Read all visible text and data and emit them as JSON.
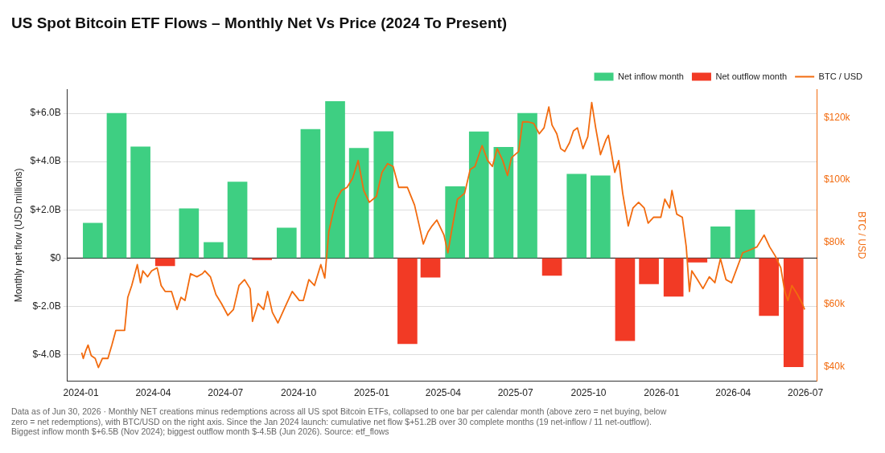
{
  "chart_data": {
    "type": "bar",
    "title": "US Spot Bitcoin ETF Flows – Monthly Net Vs Price (2024 To Present)",
    "ylabel": "Monthly net flow (USD millions)",
    "y2label": "BTC / USD",
    "x": [
      "2024-01-16",
      "2024-02-15",
      "2024-03-16",
      "2024-04-16",
      "2024-05-16",
      "2024-06-16",
      "2024-07-16",
      "2024-08-16",
      "2024-09-16",
      "2024-10-16",
      "2024-11-16",
      "2024-12-16",
      "2025-01-16",
      "2025-02-15",
      "2025-03-16",
      "2025-04-16",
      "2025-05-16",
      "2025-06-16",
      "2025-07-16",
      "2025-08-16",
      "2025-09-16",
      "2025-10-16",
      "2025-11-16",
      "2025-12-16",
      "2026-01-16",
      "2026-02-15",
      "2026-03-16",
      "2026-04-16",
      "2026-05-16",
      "2026-06-16"
    ],
    "series": [
      {
        "name": "Net inflow month",
        "color": "#3ecf82",
        "values": [
          1.45,
          6.0,
          4.61,
          null,
          2.05,
          0.65,
          3.15,
          null,
          1.25,
          5.33,
          6.49,
          4.55,
          5.24,
          null,
          null,
          2.96,
          5.23,
          4.59,
          6.0,
          null,
          3.48,
          3.41,
          null,
          null,
          null,
          null,
          1.3,
          2.0,
          null,
          null
        ]
      },
      {
        "name": "Net outflow month",
        "color": "#f23a25",
        "values": [
          null,
          null,
          null,
          -0.32,
          null,
          null,
          null,
          -0.07,
          null,
          null,
          null,
          null,
          null,
          -3.55,
          -0.79,
          null,
          null,
          null,
          null,
          -0.72,
          null,
          null,
          -3.42,
          -1.07,
          -1.58,
          -0.17,
          null,
          null,
          -2.38,
          -4.5
        ]
      },
      {
        "name": "BTC / USD",
        "type": "line",
        "axis": "y2",
        "color": "#f26b0f",
        "x": [
          "2024-01-02",
          "2024-01-04",
          "2024-01-07",
          "2024-01-10",
          "2024-01-14",
          "2024-01-19",
          "2024-01-23",
          "2024-01-28",
          "2024-02-04",
          "2024-02-09",
          "2024-02-14",
          "2024-02-20",
          "2024-02-25",
          "2024-02-29",
          "2024-03-05",
          "2024-03-12",
          "2024-03-16",
          "2024-03-19",
          "2024-03-25",
          "2024-03-30",
          "2024-04-06",
          "2024-04-11",
          "2024-04-16",
          "2024-04-24",
          "2024-05-01",
          "2024-05-06",
          "2024-05-11",
          "2024-05-18",
          "2024-05-26",
          "2024-06-02",
          "2024-06-05",
          "2024-06-12",
          "2024-06-19",
          "2024-06-26",
          "2024-07-04",
          "2024-07-11",
          "2024-07-18",
          "2024-07-25",
          "2024-08-01",
          "2024-08-04",
          "2024-08-11",
          "2024-08-18",
          "2024-08-23",
          "2024-08-29",
          "2024-09-05",
          "2024-09-11",
          "2024-09-16",
          "2024-09-23",
          "2024-10-02",
          "2024-10-07",
          "2024-10-14",
          "2024-10-21",
          "2024-10-29",
          "2024-11-03",
          "2024-11-08",
          "2024-11-13",
          "2024-11-18",
          "2024-11-24",
          "2024-12-01",
          "2024-12-08",
          "2024-12-15",
          "2024-12-22",
          "2024-12-29",
          "2025-01-07",
          "2025-01-14",
          "2025-01-21",
          "2025-01-28",
          "2025-02-04",
          "2025-02-15",
          "2025-02-24",
          "2025-03-02",
          "2025-03-07",
          "2025-03-13",
          "2025-03-18",
          "2025-03-24",
          "2025-04-02",
          "2025-04-07",
          "2025-04-12",
          "2025-04-19",
          "2025-04-28",
          "2025-05-05",
          "2025-05-11",
          "2025-05-20",
          "2025-05-27",
          "2025-06-02",
          "2025-06-08",
          "2025-06-15",
          "2025-06-21",
          "2025-06-26",
          "2025-07-05",
          "2025-07-10",
          "2025-07-17",
          "2025-07-24",
          "2025-07-31",
          "2025-08-06",
          "2025-08-12",
          "2025-08-16",
          "2025-08-22",
          "2025-08-27",
          "2025-09-01",
          "2025-09-07",
          "2025-09-12",
          "2025-09-17",
          "2025-09-24",
          "2025-09-30",
          "2025-10-05",
          "2025-10-10",
          "2025-10-16",
          "2025-10-23",
          "2025-10-26",
          "2025-11-03",
          "2025-11-08",
          "2025-11-13",
          "2025-11-20",
          "2025-11-26",
          "2025-12-03",
          "2025-12-10",
          "2025-12-15",
          "2025-12-22",
          "2025-12-31",
          "2026-01-05",
          "2026-01-11",
          "2026-01-14",
          "2026-01-20",
          "2026-01-27",
          "2026-02-01",
          "2026-02-05",
          "2026-02-08",
          "2026-02-15",
          "2026-02-22",
          "2026-03-02",
          "2026-03-09",
          "2026-03-16",
          "2026-03-23",
          "2026-03-30",
          "2026-04-06",
          "2026-04-13",
          "2026-04-22",
          "2026-05-01",
          "2026-05-10",
          "2026-05-17",
          "2026-05-24",
          "2026-05-31",
          "2026-06-05",
          "2026-06-09",
          "2026-06-14",
          "2026-06-21",
          "2026-06-27",
          "2026-06-30"
        ],
        "values": [
          44600,
          42700,
          45100,
          47000,
          43600,
          42700,
          39800,
          42700,
          42700,
          47000,
          51700,
          51700,
          51700,
          62300,
          66100,
          72800,
          67000,
          70800,
          68900,
          70800,
          71800,
          66100,
          64200,
          64200,
          58400,
          62300,
          61300,
          69900,
          68900,
          69900,
          70800,
          68900,
          63200,
          60300,
          56500,
          58400,
          66100,
          68000,
          65100,
          54600,
          60300,
          58400,
          64200,
          57500,
          54100,
          57500,
          60300,
          64200,
          61300,
          61300,
          68000,
          66100,
          72800,
          68500,
          83300,
          89000,
          93800,
          96600,
          97600,
          100500,
          106200,
          96600,
          92800,
          94700,
          102400,
          105200,
          104300,
          97600,
          97600,
          91900,
          85200,
          79400,
          83300,
          85200,
          87100,
          82300,
          76600,
          84200,
          93800,
          95700,
          103300,
          104300,
          111000,
          106200,
          104300,
          110000,
          106200,
          101400,
          107100,
          109100,
          118600,
          118600,
          118100,
          114800,
          116700,
          123400,
          117600,
          114800,
          110000,
          109100,
          111900,
          115700,
          116700,
          110000,
          113800,
          124800,
          116700,
          108100,
          112900,
          114300,
          102400,
          106200,
          95700,
          85200,
          91000,
          92800,
          91000,
          86100,
          88000,
          88000,
          93800,
          91000,
          96600,
          89000,
          88000,
          78500,
          64200,
          70800,
          68000,
          65100,
          68900,
          67000,
          74700,
          68000,
          67000,
          71800,
          76600,
          77500,
          78500,
          82300,
          78500,
          75600,
          71800,
          64200,
          61300,
          66100,
          63200,
          60300,
          58400
        ]
      }
    ],
    "xlim": [
      "2023-12-15",
      "2026-07-16"
    ],
    "xticks": [
      "2024-01",
      "2024-04",
      "2024-07",
      "2024-10",
      "2025-01",
      "2025-04",
      "2025-07",
      "2025-10",
      "2026-01",
      "2026-04",
      "2026-07"
    ],
    "ylim": [
      -5.1,
      7.0
    ],
    "yticks": [
      {
        "value": -4,
        "label": "$-4.0B"
      },
      {
        "value": -2,
        "label": "$-2.0B"
      },
      {
        "value": 0,
        "label": "$0"
      },
      {
        "value": 2,
        "label": "$+2.0B"
      },
      {
        "value": 4,
        "label": "$+4.0B"
      },
      {
        "value": 6,
        "label": "$+6.0B"
      }
    ],
    "y2lim": [
      35400,
      129100
    ],
    "y2ticks": [
      {
        "value": 40000,
        "label": "$40k"
      },
      {
        "value": 60000,
        "label": "$60k"
      },
      {
        "value": 80000,
        "label": "$80k"
      },
      {
        "value": 100000,
        "label": "$100k"
      },
      {
        "value": 120000,
        "label": "$120k"
      }
    ],
    "ref_lines": [
      {
        "axis": "y",
        "value": 0,
        "color": "#333333"
      }
    ],
    "grid": "y",
    "legend": "top right",
    "line_style": "solid",
    "marker": "none",
    "annotations": [
      "Data as of Jun 30, 2026 · Monthly NET creations minus redemptions across all US spot Bitcoin ETFs, collapsed to one bar per calendar month (above zero = net buying, below zero = net redemptions), with BTC/USD on the right axis. Since the Jan 2024 launch: cumulative net flow $+51.2B over 30 complete months (19 net-inflow / 11 net-outflow). Biggest inflow month $+6.5B (Nov 2024); biggest outflow month $-4.5B (Jun 2026). Source: etf_flows"
    ]
  }
}
